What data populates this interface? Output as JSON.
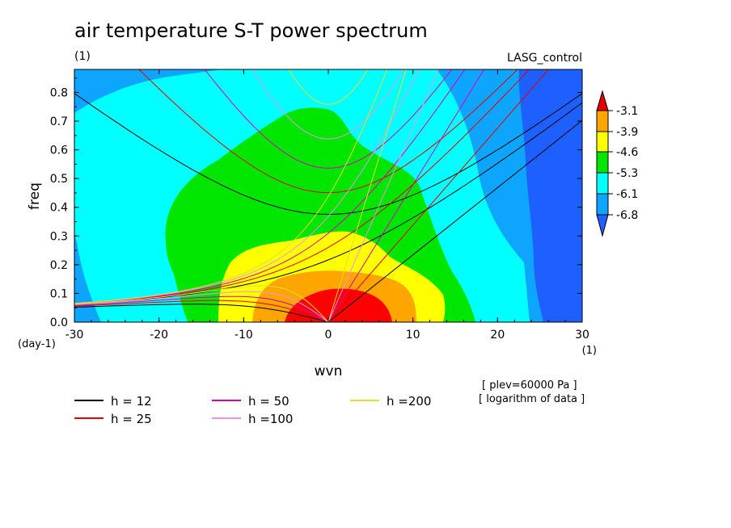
{
  "chart_data": {
    "type": "heatmap",
    "title": "air temperature S-T power spectrum",
    "subtitle_left": "(1)",
    "subtitle_right": "LASG_control",
    "xlabel": "wvn",
    "ylabel": "freq",
    "x_unit_label": "(1)",
    "y_unit_label": "(day-1)",
    "xlim": [
      -30,
      30
    ],
    "ylim": [
      0,
      0.88
    ],
    "x_ticks": [
      -30,
      -20,
      -10,
      0,
      10,
      20,
      30
    ],
    "x_tick_labels": [
      "-30",
      "-20",
      "-10",
      "0",
      "10",
      "20",
      "30"
    ],
    "y_ticks": [
      0,
      0.1,
      0.2,
      0.3,
      0.4,
      0.5,
      0.6,
      0.7,
      0.8
    ],
    "y_tick_labels": [
      "0.0",
      "0.1",
      "0.2",
      "0.3",
      "0.4",
      "0.5",
      "0.6",
      "0.7",
      "0.8"
    ],
    "colorbar": {
      "levels": [
        "-3.1",
        "-3.9",
        "-4.6",
        "-5.3",
        "-6.1",
        "-6.8"
      ],
      "colors": [
        "#ff0000",
        "#ffa500",
        "#ffff00",
        "#00e600",
        "#00ffff",
        "#0ea5ff",
        "#1e5fff",
        "#e60000"
      ]
    },
    "fill_colors": {
      "dark_blue": "#1e5fff",
      "blue": "#0ea5ff",
      "cyan": "#00ffff",
      "green": "#00e600",
      "yellow": "#ffff00",
      "orange": "#ffa500",
      "red": "#ff0000"
    },
    "notes": [
      "[ plev=60000 Pa ]",
      "[ logarithm of data ]"
    ],
    "dispersion_curves": [
      {
        "name": "h = 12",
        "h": 12,
        "color": "#000000"
      },
      {
        "name": "h = 25",
        "h": 25,
        "color": "#e60000"
      },
      {
        "name": "h = 50",
        "h": 50,
        "color": "#dc00b4"
      },
      {
        "name": "h =100",
        "h": 100,
        "color": "#e696e6"
      },
      {
        "name": "h =200",
        "h": 200,
        "color": "#e6dc32"
      }
    ]
  }
}
